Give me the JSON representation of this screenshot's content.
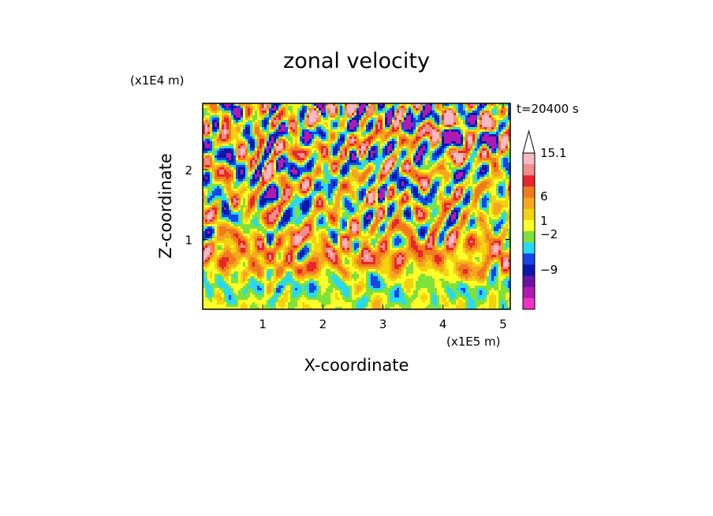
{
  "chart_data": {
    "type": "heatmap",
    "title": "zonal velocity",
    "xlabel": "X-coordinate",
    "ylabel": "Z-coordinate",
    "x_unit": "(x1E5 m)",
    "y_unit": "(x1E4 m)",
    "time_label": "t=20400 s",
    "xlim": [
      0,
      5.12
    ],
    "ylim": [
      0,
      2.95
    ],
    "x_ticks": [
      "1",
      "2",
      "3",
      "4",
      "5"
    ],
    "y_ticks": [
      "1",
      "2"
    ],
    "colorbar": {
      "labels": [
        "15.1",
        "6",
        "1",
        "-2",
        "-9"
      ],
      "colors": [
        "#f7b9c2",
        "#f38c8c",
        "#e8262b",
        "#f07b1a",
        "#f5a623",
        "#f4d20d",
        "#ffff2a",
        "#7ee23a",
        "#27d9f5",
        "#1646e8",
        "#0a17a8",
        "#6a14a5",
        "#b01ab4",
        "#f033c8"
      ]
    },
    "field_description": "turbulent contour field of zonal velocity",
    "grid": false
  }
}
